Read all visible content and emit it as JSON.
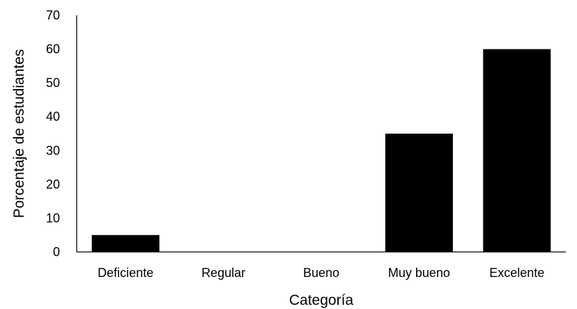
{
  "chart_data": {
    "type": "bar",
    "title": "",
    "xlabel": "Categoría",
    "ylabel": "Porcentaje de estudiantes",
    "categories": [
      "Deficiente",
      "Regular",
      "Bueno",
      "Muy bueno",
      "Excelente"
    ],
    "values": [
      5,
      0,
      0,
      35,
      60
    ],
    "ylim": [
      0,
      70
    ],
    "yticks": [
      0,
      10,
      20,
      30,
      40,
      50,
      60,
      70
    ],
    "grid": false,
    "legend": "none",
    "bar_color": "#000000"
  }
}
